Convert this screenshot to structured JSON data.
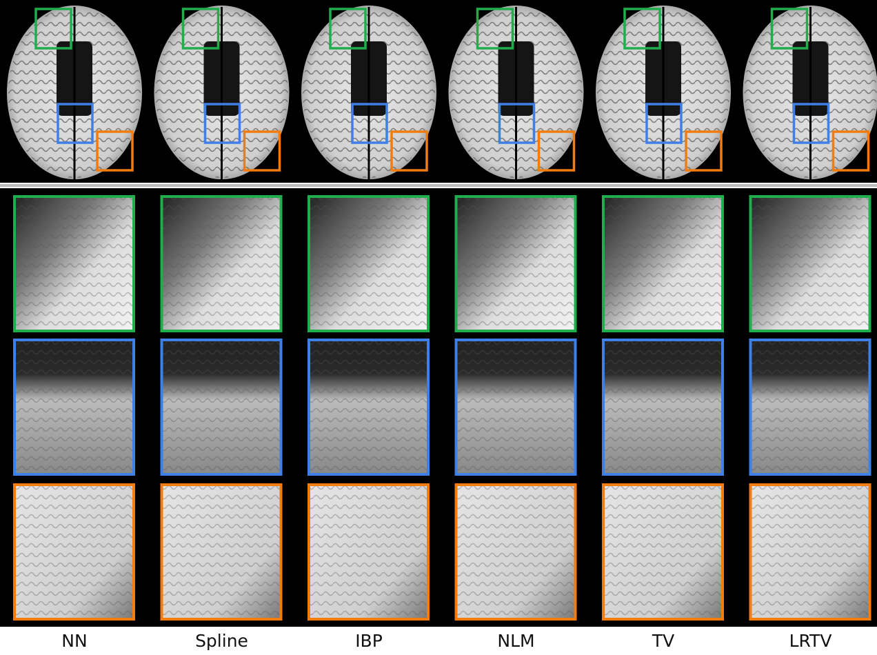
{
  "labels": [
    "NN",
    "Spline",
    "IBP",
    "NLM",
    "TV",
    "LRTV"
  ]
}
